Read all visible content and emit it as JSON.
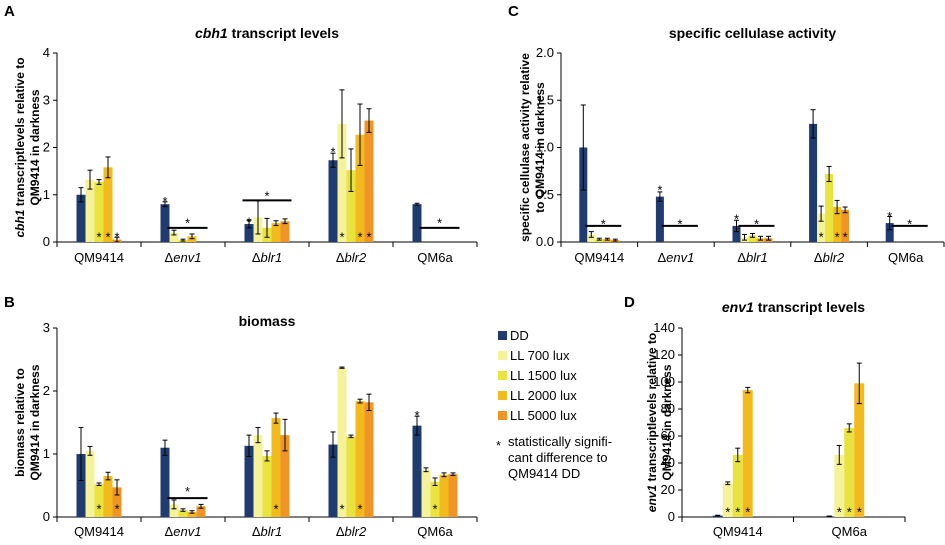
{
  "colors": [
    "#1f3b70",
    "#f6f29a",
    "#e8e33f",
    "#f3ba1e",
    "#ef9526"
  ],
  "legend": {
    "entries": [
      "DD",
      "LL 700 lux",
      "LL 1500 lux",
      "LL 2000 lux",
      "LL 5000 lux"
    ],
    "note_symbol": "*",
    "note_lines": [
      "statistically signifi-",
      "cant difference to",
      "QM9414 DD"
    ]
  },
  "chart_data": [
    {
      "panel": "A",
      "type": "bar",
      "title_parts": [
        {
          "t": "cbh1",
          "i": true
        },
        {
          "t": " transcript levels",
          "i": false
        }
      ],
      "ylabel_lines": [
        [
          {
            "t": "cbh1",
            "i": true
          },
          {
            "t": " transcriptlevels relative to",
            "i": false
          }
        ],
        [
          {
            "t": "QM9414 in darkness",
            "i": false
          }
        ]
      ],
      "ylim": [
        0,
        4
      ],
      "yticks": [
        "0",
        "1",
        "2",
        "3",
        "4"
      ],
      "categories": [
        [
          {
            "t": "QM9414",
            "i": false
          }
        ],
        [
          {
            "t": "Δ",
            "i": false
          },
          {
            "t": "env1",
            "i": true
          }
        ],
        [
          {
            "t": "Δ",
            "i": false
          },
          {
            "t": "blr1",
            "i": true
          }
        ],
        [
          {
            "t": "Δ",
            "i": false
          },
          {
            "t": "blr2",
            "i": true
          }
        ],
        [
          {
            "t": "QM6a",
            "i": false
          }
        ]
      ],
      "series_names": [
        "DD",
        "LL 700 lux",
        "LL 1500 lux",
        "LL 2000 lux",
        "LL 5000 lux"
      ],
      "values": [
        [
          1.0,
          1.32,
          1.27,
          1.58,
          0.05
        ],
        [
          0.8,
          0.2,
          0.04,
          0.12,
          null
        ],
        [
          0.38,
          0.52,
          0.3,
          0.4,
          0.44
        ],
        [
          1.73,
          2.5,
          1.52,
          2.27,
          2.57
        ],
        [
          0.8,
          null,
          null,
          null,
          null
        ]
      ],
      "errors": [
        [
          0.15,
          0.2,
          0.05,
          0.22,
          0.05
        ],
        [
          0.05,
          0.05,
          0.02,
          0.05,
          null
        ],
        [
          0.08,
          0.35,
          0.2,
          0.05,
          0.05
        ],
        [
          0.15,
          0.72,
          0.45,
          0.65,
          0.25
        ],
        [
          0.02,
          null,
          null,
          null,
          null
        ]
      ],
      "stars": [
        {
          "cat": 0,
          "bar": 2,
          "yval": 0.2
        },
        {
          "cat": 0,
          "bar": 3,
          "yval": 0.2
        },
        {
          "cat": 0,
          "bar": 4,
          "yval": 0.2
        },
        {
          "cat": 1,
          "bar": 0,
          "yval": 0.95
        },
        {
          "cat": 2,
          "bar": 0,
          "yval": 0.52
        },
        {
          "cat": 3,
          "bar": 0,
          "yval": 2.0
        },
        {
          "cat": 3,
          "bar": 1,
          "yval": 0.2
        },
        {
          "cat": 3,
          "bar": 3,
          "yval": 0.2
        },
        {
          "cat": 3,
          "bar": 4,
          "yval": 0.2
        }
      ],
      "lines": [
        {
          "cat": 1,
          "from": 1,
          "to": 4,
          "yval": 0.3,
          "star_yval": 0.5
        },
        {
          "cat": 2,
          "from": 0,
          "to": 4,
          "yval": 0.88,
          "star_yval": 1.07
        },
        {
          "cat": 4,
          "from": 1,
          "to": 4,
          "yval": 0.3,
          "star_yval": 0.5
        }
      ]
    },
    {
      "panel": "B",
      "type": "bar",
      "title_parts": [
        {
          "t": "biomass",
          "i": false
        }
      ],
      "ylabel_lines": [
        [
          {
            "t": "biomass relative to",
            "i": false
          }
        ],
        [
          {
            "t": "QM9414 in darkness",
            "i": false
          }
        ]
      ],
      "ylim": [
        0,
        3
      ],
      "yticks": [
        "0",
        "1",
        "2",
        "3"
      ],
      "categories": [
        [
          {
            "t": "QM9414",
            "i": false
          }
        ],
        [
          {
            "t": "Δ",
            "i": false
          },
          {
            "t": "env1",
            "i": true
          }
        ],
        [
          {
            "t": "Δ",
            "i": false
          },
          {
            "t": "blr1",
            "i": true
          }
        ],
        [
          {
            "t": "Δ",
            "i": false
          },
          {
            "t": "blr2",
            "i": true
          }
        ],
        [
          {
            "t": "QM6a",
            "i": false
          }
        ]
      ],
      "series_names": [
        "DD",
        "LL 700 lux",
        "LL 1500 lux",
        "LL 2000 lux",
        "LL 5000 lux"
      ],
      "values": [
        [
          1.0,
          1.05,
          0.52,
          0.65,
          0.47
        ],
        [
          1.1,
          0.2,
          0.11,
          0.08,
          0.17
        ],
        [
          1.13,
          1.3,
          0.97,
          1.57,
          1.3
        ],
        [
          1.15,
          2.37,
          1.28,
          1.84,
          1.82
        ],
        [
          1.45,
          0.75,
          0.56,
          0.67,
          0.68
        ]
      ],
      "errors": [
        [
          0.42,
          0.07,
          0.02,
          0.06,
          0.12
        ],
        [
          0.12,
          0.07,
          0.02,
          0.02,
          0.03
        ],
        [
          0.17,
          0.12,
          0.08,
          0.08,
          0.25
        ],
        [
          0.2,
          0.01,
          0.02,
          0.03,
          0.13
        ],
        [
          0.15,
          0.03,
          0.06,
          0.03,
          0.02
        ]
      ],
      "stars": [
        {
          "cat": 0,
          "bar": 2,
          "yval": 0.2
        },
        {
          "cat": 0,
          "bar": 4,
          "yval": 0.2
        },
        {
          "cat": 2,
          "bar": 3,
          "yval": 0.2
        },
        {
          "cat": 3,
          "bar": 1,
          "yval": 0.2
        },
        {
          "cat": 3,
          "bar": 3,
          "yval": 0.2
        },
        {
          "cat": 4,
          "bar": 0,
          "yval": 1.68
        },
        {
          "cat": 4,
          "bar": 2,
          "yval": 0.2
        }
      ],
      "lines": [
        {
          "cat": 1,
          "from": 1,
          "to": 4,
          "yval": 0.3,
          "star_yval": 0.48
        }
      ]
    },
    {
      "panel": "C",
      "type": "bar",
      "title_parts": [
        {
          "t": "specific cellulase activity",
          "i": false
        }
      ],
      "ylabel_lines": [
        [
          {
            "t": "specific cellulase activity relative",
            "i": false
          }
        ],
        [
          {
            "t": "to QM9414 in darkness",
            "i": false
          }
        ]
      ],
      "ylim": [
        0,
        2.0
      ],
      "yticks": [
        "0.0",
        "0.5",
        "1.0",
        "1.5",
        "2.0"
      ],
      "categories": [
        [
          {
            "t": "QM9414",
            "i": false
          }
        ],
        [
          {
            "t": "Δ",
            "i": false
          },
          {
            "t": "env1",
            "i": true
          }
        ],
        [
          {
            "t": "Δ",
            "i": false
          },
          {
            "t": "blr1",
            "i": true
          }
        ],
        [
          {
            "t": "Δ",
            "i": false
          },
          {
            "t": "blr2",
            "i": true
          }
        ],
        [
          {
            "t": "QM6a",
            "i": false
          }
        ]
      ],
      "series_names": [
        "DD",
        "LL 700 lux",
        "LL 1500 lux",
        "LL 2000 lux",
        "LL 5000 lux"
      ],
      "values": [
        [
          1.0,
          0.08,
          0.03,
          0.03,
          0.02
        ],
        [
          0.48,
          null,
          null,
          null,
          null
        ],
        [
          0.17,
          0.05,
          0.07,
          0.04,
          0.04
        ],
        [
          1.25,
          0.3,
          0.72,
          0.37,
          0.34
        ],
        [
          0.2,
          null,
          null,
          null,
          null
        ]
      ],
      "errors": [
        [
          0.45,
          0.03,
          0.01,
          0.01,
          0.01
        ],
        [
          0.05,
          null,
          null,
          null,
          null
        ],
        [
          0.06,
          0.03,
          0.02,
          0.02,
          0.02
        ],
        [
          0.15,
          0.08,
          0.08,
          0.07,
          0.03
        ],
        [
          0.07,
          null,
          null,
          null,
          null
        ]
      ],
      "stars": [
        {
          "cat": 1,
          "bar": 0,
          "yval": 0.6
        },
        {
          "cat": 2,
          "bar": 0,
          "yval": 0.29
        },
        {
          "cat": 3,
          "bar": 1,
          "yval": 0.1
        },
        {
          "cat": 3,
          "bar": 3,
          "yval": 0.1
        },
        {
          "cat": 3,
          "bar": 4,
          "yval": 0.1
        },
        {
          "cat": 4,
          "bar": 0,
          "yval": 0.32
        }
      ],
      "lines": [
        {
          "cat": 0,
          "from": 1,
          "to": 4,
          "yval": 0.17,
          "star_yval": 0.24
        },
        {
          "cat": 1,
          "from": 1,
          "to": 4,
          "yval": 0.17,
          "star_yval": 0.24
        },
        {
          "cat": 2,
          "from": 1,
          "to": 4,
          "yval": 0.17,
          "star_yval": 0.24
        },
        {
          "cat": 4,
          "from": 1,
          "to": 4,
          "yval": 0.17,
          "star_yval": 0.24
        }
      ]
    },
    {
      "panel": "D",
      "type": "bar",
      "title_parts": [
        {
          "t": "env1",
          "i": true
        },
        {
          "t": " transcript levels",
          "i": false
        }
      ],
      "ylabel_lines": [
        [
          {
            "t": "env1",
            "i": true
          },
          {
            "t": " transcriptlevels relative to",
            "i": false
          }
        ],
        [
          {
            "t": "QM9414 in darkness",
            "i": false
          }
        ]
      ],
      "ylim": [
        0,
        140
      ],
      "yticks": [
        "0",
        "20",
        "40",
        "60",
        "80",
        "100",
        "120",
        "140"
      ],
      "categories": [
        [
          {
            "t": "QM9414",
            "i": false
          }
        ],
        [
          {
            "t": "QM6a",
            "i": false
          }
        ]
      ],
      "series_names": [
        "DD",
        "LL 700 lux",
        "LL 1500 lux",
        "LL 2000 lux",
        "LL 5000 lux"
      ],
      "values": [
        [
          1,
          25,
          46,
          94,
          null
        ],
        [
          0.5,
          46,
          66,
          99,
          null
        ]
      ],
      "errors": [
        [
          0.3,
          1,
          5,
          2,
          null
        ],
        [
          0.2,
          7,
          3,
          15,
          null
        ]
      ],
      "stars": [
        {
          "cat": 0,
          "bar": 1,
          "yval": 7
        },
        {
          "cat": 0,
          "bar": 2,
          "yval": 7
        },
        {
          "cat": 0,
          "bar": 3,
          "yval": 7
        },
        {
          "cat": 1,
          "bar": 1,
          "yval": 7
        },
        {
          "cat": 1,
          "bar": 2,
          "yval": 7
        },
        {
          "cat": 1,
          "bar": 3,
          "yval": 7
        }
      ],
      "lines": []
    }
  ]
}
